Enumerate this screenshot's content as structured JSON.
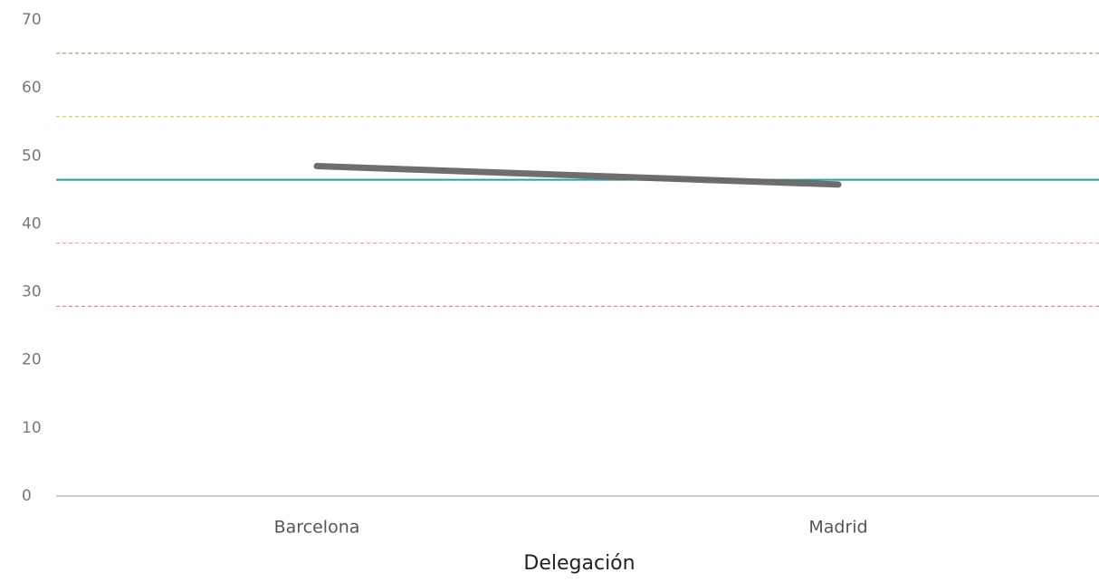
{
  "chart_data": {
    "type": "line",
    "x_label": "Delegación",
    "categories": [
      "Barcelona",
      "Madrid"
    ],
    "values": [
      48.5,
      45.8
    ],
    "color": "#666666",
    "ylim": [
      0,
      70
    ],
    "yticks": [
      0,
      10,
      20,
      30,
      40,
      50,
      60,
      70
    ],
    "reference_lines": [
      {
        "value": 65.1,
        "color": "#7a9a3a",
        "dashed": true
      },
      {
        "value": 55.8,
        "color": "#e0c020",
        "dashed": true
      },
      {
        "value": 46.5,
        "color": "#2aa198",
        "dashed": false
      },
      {
        "value": 37.2,
        "color": "#f0a0b0",
        "dashed": true
      },
      {
        "value": 27.9,
        "color": "#e07080",
        "dashed": true
      }
    ]
  }
}
